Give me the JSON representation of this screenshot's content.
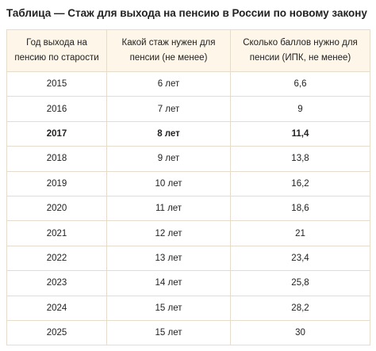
{
  "title": "Таблица — Стаж для выхода на пенсию в России по новому закону",
  "table": {
    "headers": [
      "Год выхода на пенсию по старости",
      "Какой стаж нужен для пенсии (не менее)",
      "Сколько баллов нужно для пенсии (ИПК, не менее)"
    ],
    "rows": [
      [
        "2015",
        "6 лет",
        "6,6"
      ],
      [
        "2016",
        "7 лет",
        "9"
      ],
      [
        "2017",
        "8 лет",
        "11,4"
      ],
      [
        "2018",
        "9 лет",
        "13,8"
      ],
      [
        "2019",
        "10 лет",
        "16,2"
      ],
      [
        "2020",
        "11 лет",
        "18,6"
      ],
      [
        "2021",
        "12 лет",
        "21"
      ],
      [
        "2022",
        "13 лет",
        "23,4"
      ],
      [
        "2023",
        "14 лет",
        "25,8"
      ],
      [
        "2024",
        "15 лет",
        "28,2"
      ],
      [
        "2025",
        "15 лет",
        "30"
      ]
    ],
    "highlight_row": "2017"
  },
  "colors": {
    "header_bg": "#fdf6e9",
    "border": "#e6dccb",
    "text": "#222222"
  }
}
